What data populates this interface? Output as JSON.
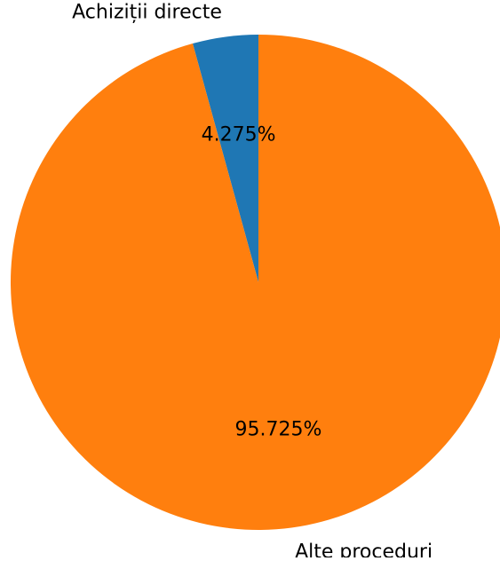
{
  "chart_data": {
    "type": "pie",
    "slices": [
      {
        "label": "Achiziții directe",
        "value": 4.275,
        "pct_label": "4.275%",
        "color": "#1f77b4"
      },
      {
        "label": "Alte proceduri",
        "value": 95.725,
        "pct_label": "95.725%",
        "color": "#ff7f0e"
      }
    ],
    "start_angle_deg": 90,
    "direction": "counterclockwise"
  }
}
